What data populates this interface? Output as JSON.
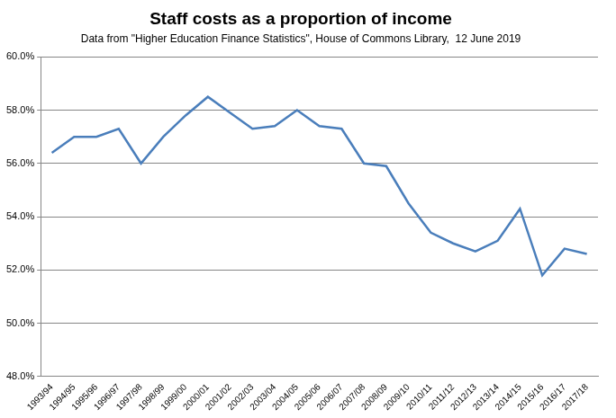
{
  "chart_data": {
    "type": "line",
    "title": "Staff costs as a proportion of income",
    "subtitle": "Data from \"Higher Education Finance Statistics\", House of Commons Library,  12 June 2019",
    "categories": [
      "1993/94",
      "1994/95",
      "1995/96",
      "1996/97",
      "1997/98",
      "1998/99",
      "1999/00",
      "2000/01",
      "2001/02",
      "2002/03",
      "2003/04",
      "2004/05",
      "2005/06",
      "2006/07",
      "2007/08",
      "2008/09",
      "2009/10",
      "2010/11",
      "2011/12",
      "2012/13",
      "2013/14",
      "2014/15",
      "2015/16",
      "2016/17",
      "2017/18"
    ],
    "values": [
      56.4,
      57.0,
      57.0,
      57.3,
      56.0,
      57.0,
      57.8,
      58.5,
      57.9,
      57.3,
      57.4,
      58.0,
      57.4,
      57.3,
      56.0,
      55.9,
      54.5,
      53.4,
      53.0,
      52.7,
      53.1,
      54.3,
      51.8,
      52.8,
      52.6
    ],
    "color": "#4a7ebb",
    "ylim": [
      48,
      60
    ],
    "yticks": [
      {
        "value": 48,
        "label": "48.0%"
      },
      {
        "value": 50,
        "label": "50.0%"
      },
      {
        "value": 52,
        "label": "52.0%"
      },
      {
        "value": 54,
        "label": "54.0%"
      },
      {
        "value": 56,
        "label": "56.0%"
      },
      {
        "value": 58,
        "label": "58.0%"
      },
      {
        "value": 60,
        "label": "60.0%"
      }
    ],
    "grid": true
  }
}
